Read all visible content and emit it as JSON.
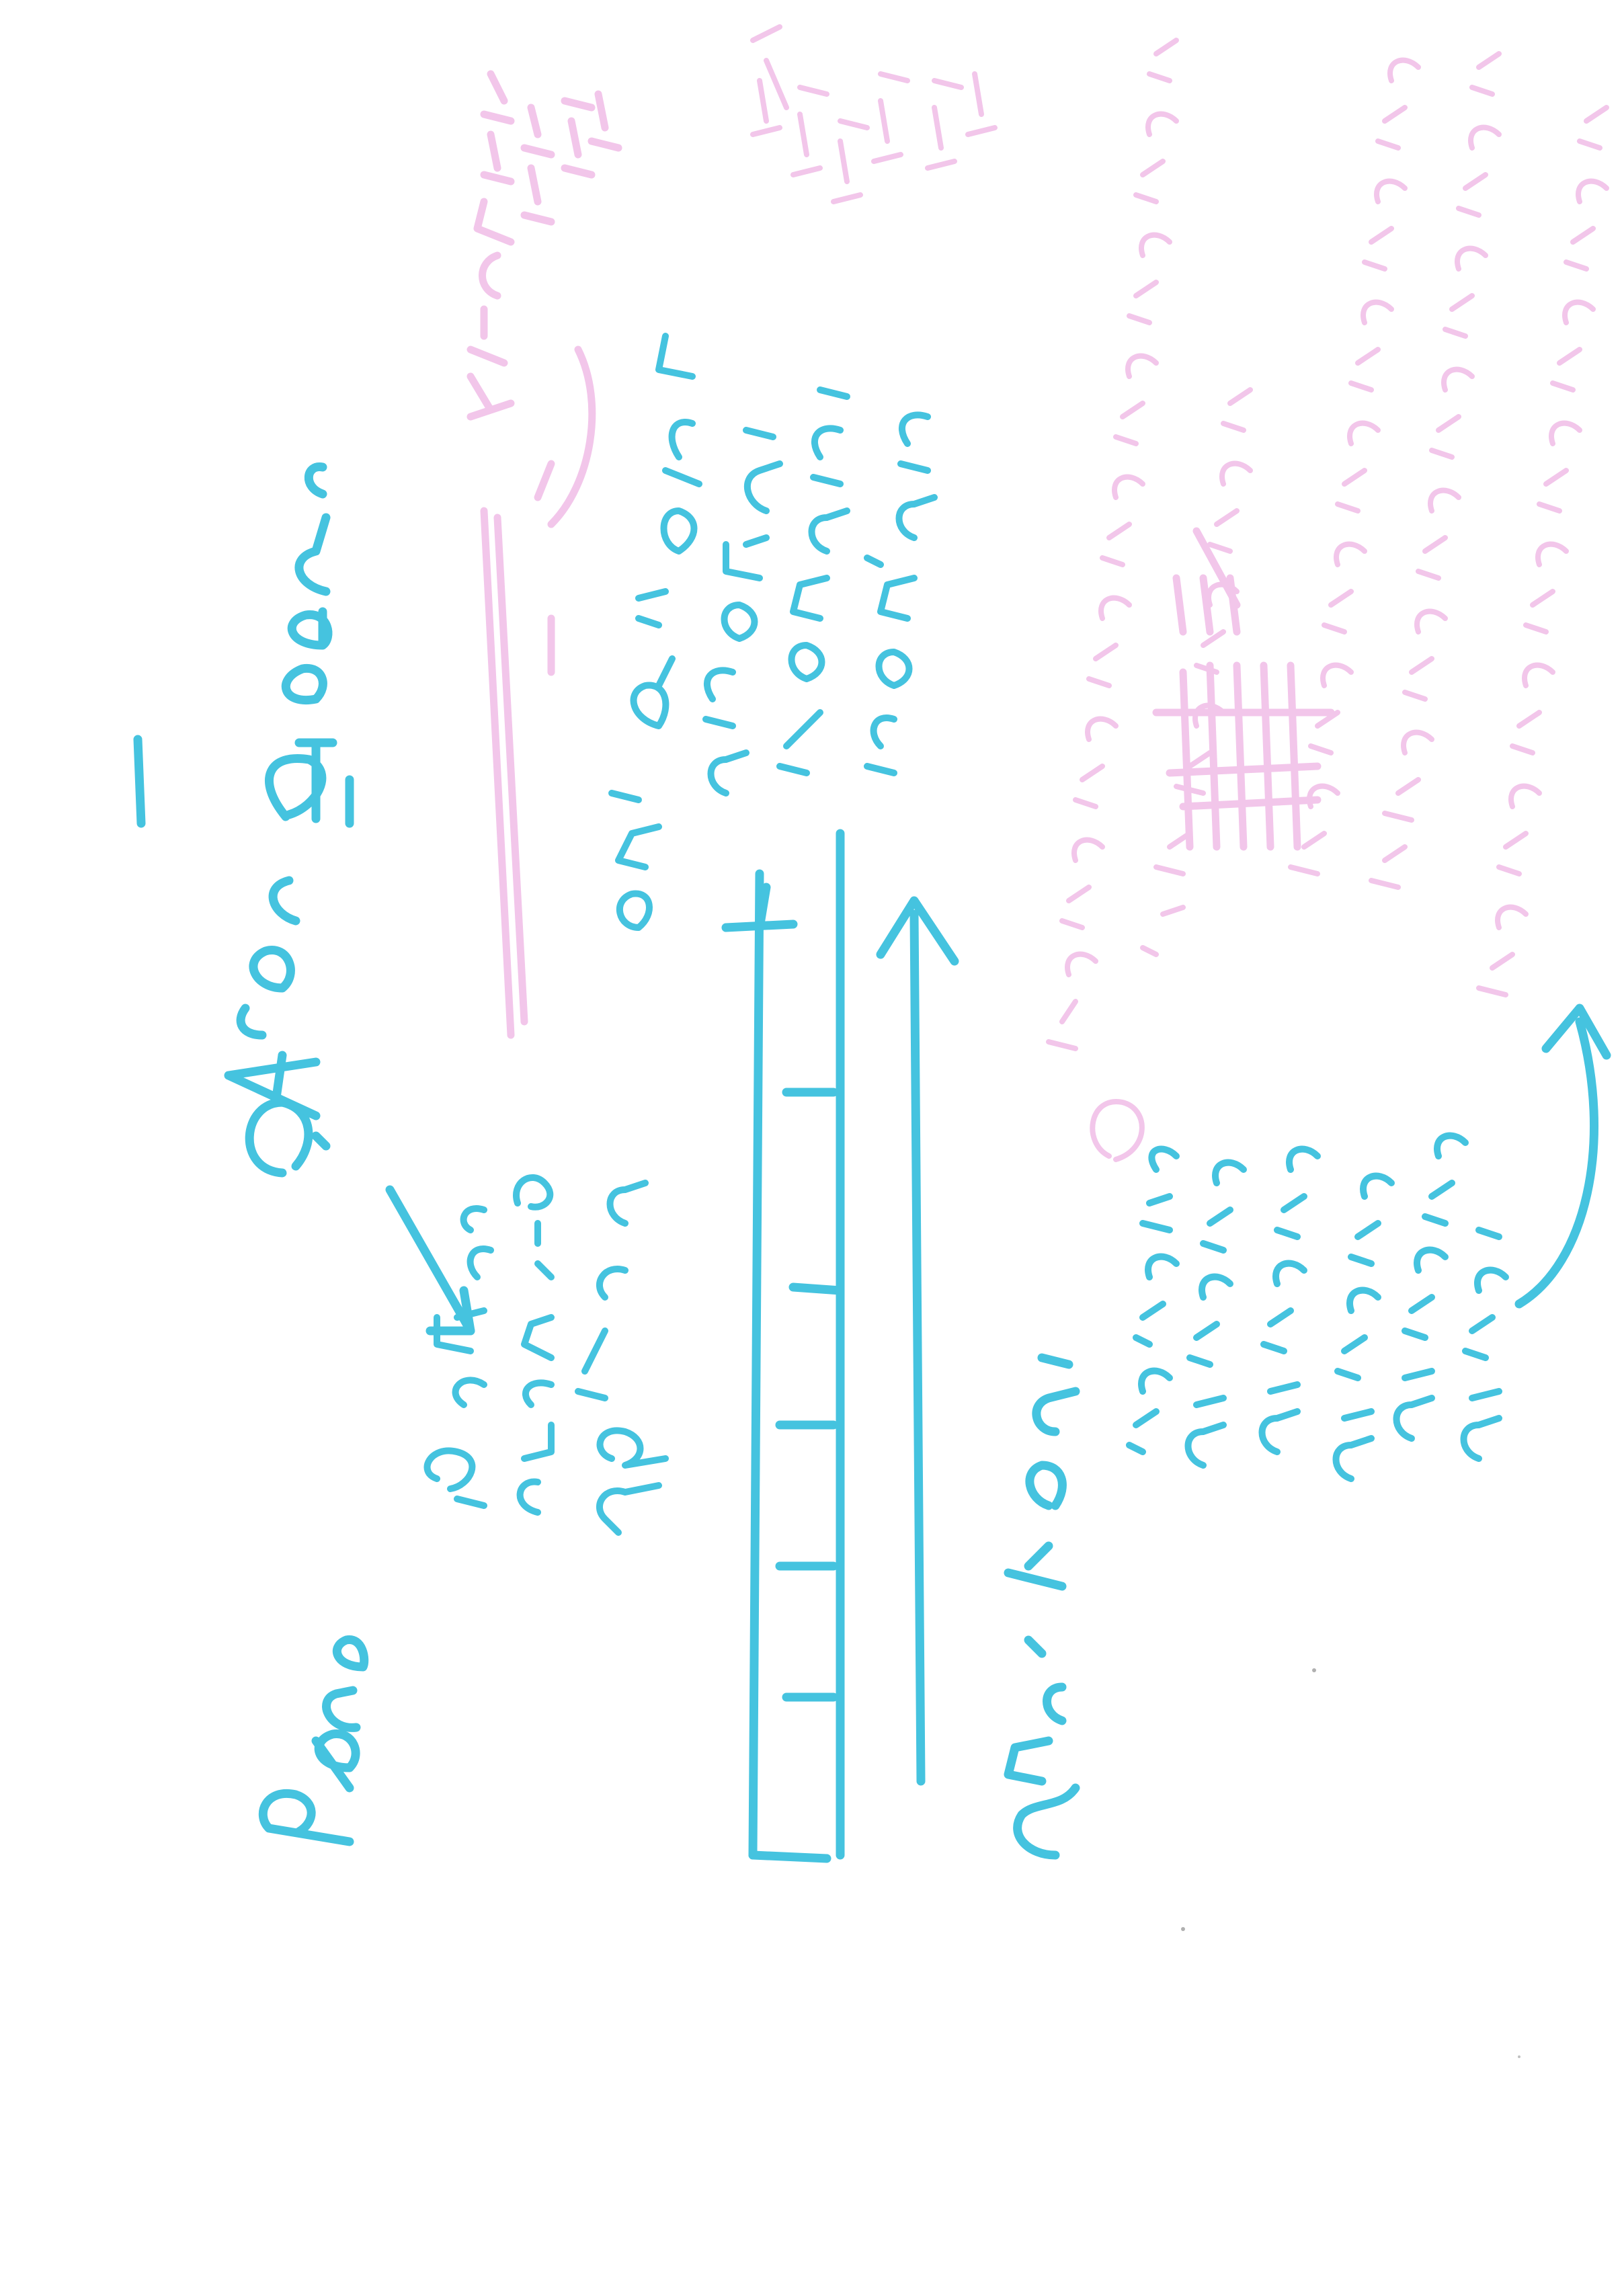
{
  "page": {
    "type": "handwritten-note-scan",
    "orientation": "rotated-90-degrees",
    "background": "#ffffff"
  },
  "ink": {
    "primary": "#45c3df",
    "faded": "#f2c6ea"
  }
}
